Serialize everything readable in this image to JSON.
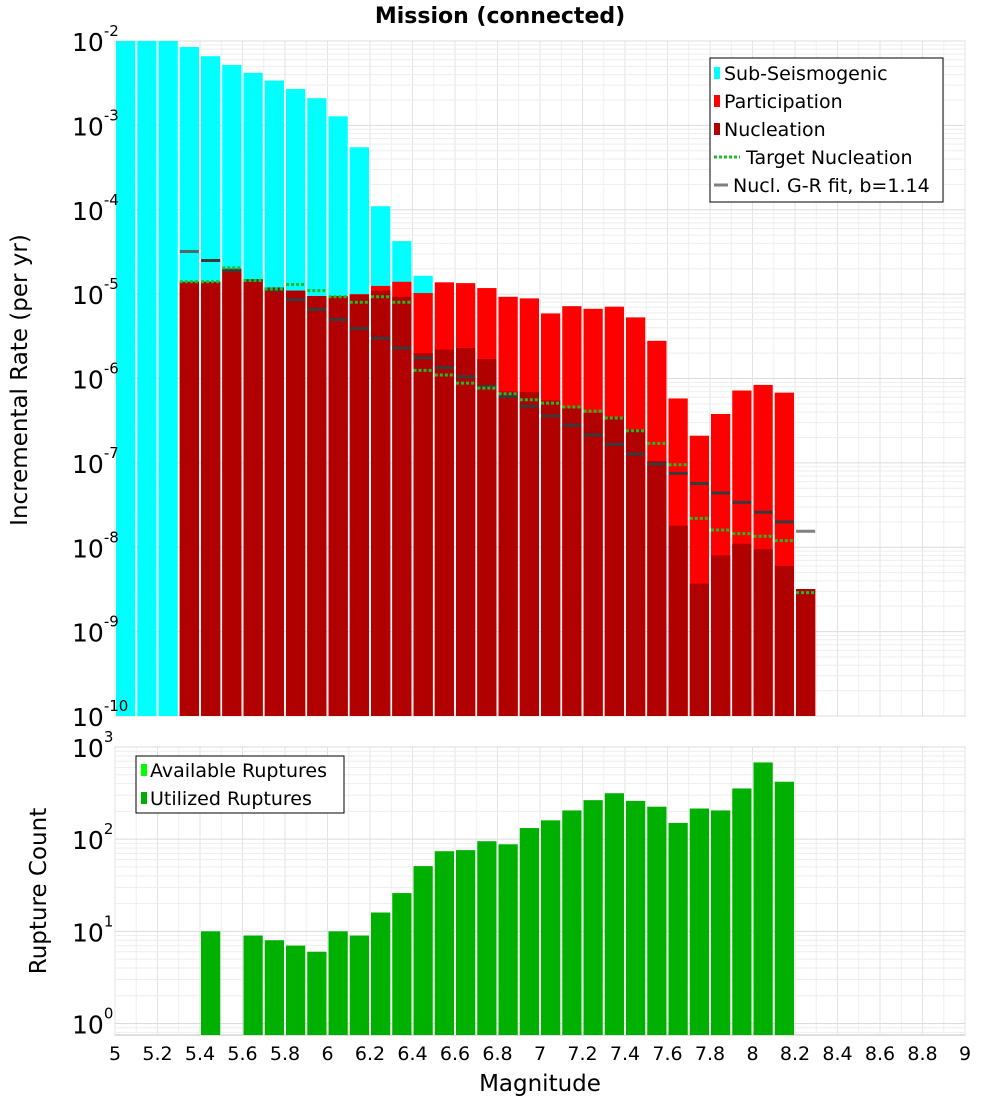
{
  "title": "Mission (connected)",
  "colors": {
    "sub_seismogenic": "#00ffff",
    "participation": "#ff0000",
    "nucleation": "#b00000",
    "target_nucleation": "#22bb22",
    "gr_fit": "#808080",
    "available": "#00ff00",
    "utilized": "#00b000"
  },
  "chart_data": [
    {
      "type": "bar",
      "panel": "top",
      "title": "Mission (connected)",
      "xlabel": "",
      "ylabel": "Incremental Rate (per yr)",
      "xlim": [
        5,
        9
      ],
      "ylim": [
        1e-10,
        0.01
      ],
      "yscale": "log",
      "grid": true,
      "legend_position": "top-right",
      "ytick_labels": [
        {
          "base": "10",
          "exp": "-2",
          "value": 0.01
        },
        {
          "base": "10",
          "exp": "-3",
          "value": 0.001
        },
        {
          "base": "10",
          "exp": "-4",
          "value": 0.0001
        },
        {
          "base": "10",
          "exp": "-5",
          "value": 1e-05
        },
        {
          "base": "10",
          "exp": "-6",
          "value": 1e-06
        },
        {
          "base": "10",
          "exp": "-7",
          "value": 1e-07
        },
        {
          "base": "10",
          "exp": "-8",
          "value": 1e-08
        },
        {
          "base": "10",
          "exp": "-9",
          "value": 1e-09
        },
        {
          "base": "10",
          "exp": "-10",
          "value": 1e-10
        }
      ],
      "bin_width": 0.1,
      "legend": [
        {
          "name": "Sub-Seismogenic",
          "style": "bar",
          "color": "#00ffff"
        },
        {
          "name": "Participation",
          "style": "bar",
          "color": "#ff0000"
        },
        {
          "name": "Nucleation",
          "style": "bar",
          "color": "#b00000"
        },
        {
          "name": "Target Nucleation",
          "style": "dotted",
          "color": "#22bb22"
        },
        {
          "name": "Nucl. G-R fit, b=1.14",
          "style": "line",
          "color": "#808080"
        }
      ],
      "series": [
        {
          "name": "Sub-Seismogenic",
          "x": [
            5.05,
            5.15,
            5.25,
            5.35,
            5.45,
            5.55,
            5.65,
            5.75,
            5.85,
            5.95,
            6.05,
            6.15,
            6.25,
            6.35,
            6.45
          ],
          "values": [
            0.01,
            0.01,
            0.01,
            0.0085,
            0.0066,
            0.0052,
            0.0042,
            0.0034,
            0.0027,
            0.0021,
            0.00128,
            0.00055,
            0.00011,
            4.25e-05,
            1.65e-05
          ]
        },
        {
          "name": "Participation",
          "x": [
            5.35,
            5.45,
            5.55,
            5.65,
            5.75,
            5.85,
            5.95,
            6.05,
            6.15,
            6.25,
            6.35,
            6.45,
            6.55,
            6.65,
            6.75,
            6.85,
            6.95,
            7.05,
            7.15,
            7.25,
            7.35,
            7.45,
            7.55,
            7.65,
            7.75,
            7.85,
            7.95,
            8.05,
            8.15,
            8.25
          ],
          "values": [
            1.4e-05,
            1.4e-05,
            2e-05,
            1.5e-05,
            1.2e-05,
            1.1e-05,
            9.5e-06,
            9.5e-06,
            1e-05,
            1.25e-05,
            1.4e-05,
            1.03e-05,
            1.38e-05,
            1.35e-05,
            1.18e-05,
            9.3e-06,
            8.9e-06,
            5.9e-06,
            7.2e-06,
            6.7e-06,
            7.1e-06,
            5.3e-06,
            2.8e-06,
            5.8e-07,
            2.1e-07,
            3.8e-07,
            7.2e-07,
            8.4e-07,
            6.8e-07,
            3.2e-09
          ]
        },
        {
          "name": "Nucleation",
          "x": [
            5.35,
            5.45,
            5.55,
            5.65,
            5.75,
            5.85,
            5.95,
            6.05,
            6.15,
            6.25,
            6.35,
            6.45,
            6.55,
            6.65,
            6.75,
            6.85,
            6.95,
            7.05,
            7.15,
            7.25,
            7.35,
            7.45,
            7.55,
            7.65,
            7.75,
            7.85,
            7.95,
            8.05,
            8.15,
            8.25
          ],
          "values": [
            1.4e-05,
            1.4e-05,
            2e-05,
            1.5e-05,
            1.2e-05,
            1.1e-05,
            9.5e-06,
            9.3e-06,
            9.8e-06,
            1.1e-05,
            9.3e-06,
            2e-06,
            2.2e-06,
            2.3e-06,
            1.7e-06,
            7e-07,
            6.9e-07,
            5.5e-07,
            4.5e-07,
            3.9e-07,
            3.5e-07,
            2.5e-07,
            1.05e-07,
            1.8e-08,
            3.7e-09,
            8e-09,
            1.1e-08,
            9.5e-09,
            6e-09,
            3.2e-09
          ]
        },
        {
          "name": "Target Nucleation",
          "x": [
            5.35,
            5.45,
            5.55,
            5.65,
            5.75,
            5.85,
            5.95,
            6.05,
            6.15,
            6.25,
            6.35,
            6.45,
            6.55,
            6.65,
            6.75,
            6.85,
            6.95,
            7.05,
            7.15,
            7.25,
            7.35,
            7.45,
            7.55,
            7.65,
            7.75,
            7.85,
            7.95,
            8.05,
            8.15,
            8.25
          ],
          "values": [
            1.4e-05,
            1.4e-05,
            2.05e-05,
            1.45e-05,
            1.15e-05,
            1.3e-05,
            1.1e-05,
            9.3e-06,
            8e-06,
            9.3e-06,
            8e-06,
            1.25e-06,
            1.1e-06,
            8.8e-07,
            7.7e-07,
            6.6e-07,
            5.6e-07,
            5.1e-07,
            4.6e-07,
            4.1e-07,
            3.4e-07,
            2.4e-07,
            1.7e-07,
            9.5e-08,
            2.2e-08,
            1.6e-08,
            1.45e-08,
            1.35e-08,
            1.2e-08,
            2.9e-09
          ]
        },
        {
          "name": "Nucl. G-R fit, b=1.14",
          "x": [
            5.35,
            5.45,
            5.55,
            5.65,
            5.75,
            5.85,
            5.95,
            6.05,
            6.15,
            6.25,
            6.35,
            6.45,
            6.55,
            6.65,
            6.75,
            6.85,
            6.95,
            7.05,
            7.15,
            7.25,
            7.35,
            7.45,
            7.55,
            7.65,
            7.75,
            7.85,
            7.95,
            8.05,
            8.15,
            8.25
          ],
          "values": [
            3.2e-05,
            2.5e-05,
            1.9e-05,
            1.45e-05,
            1.12e-05,
            8.6e-06,
            6.6e-06,
            5e-06,
            3.9e-06,
            3e-06,
            2.3e-06,
            1.75e-06,
            1.35e-06,
            1.05e-06,
            8e-07,
            6.1e-07,
            4.7e-07,
            3.6e-07,
            2.8e-07,
            2.15e-07,
            1.65e-07,
            1.27e-07,
            9.7e-08,
            7.5e-08,
            5.7e-08,
            4.4e-08,
            3.4e-08,
            2.6e-08,
            2e-08,
            1.55e-08
          ]
        }
      ]
    },
    {
      "type": "bar",
      "panel": "bottom",
      "title": "",
      "xlabel": "Magnitude",
      "ylabel": "Rupture Count",
      "xlim": [
        5,
        9
      ],
      "ylim": [
        0.75,
        1000
      ],
      "yscale": "log",
      "grid": true,
      "legend_position": "top-left",
      "ytick_labels": [
        {
          "base": "10",
          "exp": "3",
          "value": 1000
        },
        {
          "base": "10",
          "exp": "2",
          "value": 100
        },
        {
          "base": "10",
          "exp": "1",
          "value": 10
        },
        {
          "base": "10",
          "exp": "0",
          "value": 1
        }
      ],
      "xtick_labels": [
        "5",
        "5.2",
        "5.4",
        "5.6",
        "5.8",
        "6",
        "6.2",
        "6.4",
        "6.6",
        "6.8",
        "7",
        "7.2",
        "7.4",
        "7.6",
        "7.8",
        "8",
        "8.2",
        "8.4",
        "8.6",
        "8.8",
        "9"
      ],
      "legend": [
        {
          "name": "Available Ruptures",
          "style": "bar",
          "color": "#00ff00"
        },
        {
          "name": "Utilized Ruptures",
          "style": "bar",
          "color": "#00b000"
        }
      ],
      "series": [
        {
          "name": "Utilized Ruptures",
          "x": [
            5.45,
            5.65,
            5.75,
            5.85,
            5.95,
            6.05,
            6.15,
            6.25,
            6.35,
            6.45,
            6.55,
            6.65,
            6.75,
            6.85,
            6.95,
            7.05,
            7.15,
            7.25,
            7.35,
            7.45,
            7.55,
            7.65,
            7.75,
            7.85,
            7.95,
            8.05,
            8.15
          ],
          "values": [
            10,
            9,
            8,
            7,
            6,
            10,
            9,
            16,
            26,
            51,
            74,
            76,
            95,
            88,
            132,
            160,
            205,
            265,
            315,
            260,
            225,
            150,
            215,
            205,
            355,
            680,
            420
          ]
        }
      ]
    }
  ]
}
